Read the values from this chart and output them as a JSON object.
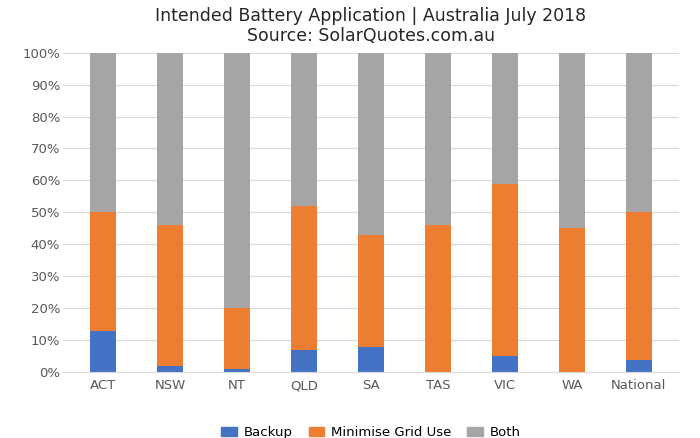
{
  "categories": [
    "ACT",
    "NSW",
    "NT",
    "QLD",
    "SA",
    "TAS",
    "VIC",
    "WA",
    "National"
  ],
  "backup": [
    13,
    2,
    1,
    7,
    8,
    0,
    5,
    0,
    4
  ],
  "minimise_grid": [
    37,
    44,
    19,
    45,
    35,
    46,
    54,
    45,
    46
  ],
  "both": [
    50,
    54,
    80,
    48,
    57,
    54,
    41,
    55,
    50
  ],
  "color_backup": "#4472C4",
  "color_minimise": "#ED7D31",
  "color_both": "#A5A5A5",
  "title_line1": "Intended Battery Application | Australia July 2018",
  "title_line2": "Source: SolarQuotes.com.au",
  "legend_labels": [
    "Backup",
    "Minimise Grid Use",
    "Both"
  ],
  "ytick_labels": [
    "0%",
    "10%",
    "20%",
    "30%",
    "40%",
    "50%",
    "60%",
    "70%",
    "80%",
    "90%",
    "100%"
  ],
  "ytick_values": [
    0,
    10,
    20,
    30,
    40,
    50,
    60,
    70,
    80,
    90,
    100
  ],
  "ylim": [
    0,
    100
  ],
  "bar_width": 0.38,
  "background_color": "#FFFFFF",
  "grid_color": "#D9D9D9",
  "title_fontsize": 12.5,
  "tick_fontsize": 9.5,
  "legend_fontsize": 9.5
}
